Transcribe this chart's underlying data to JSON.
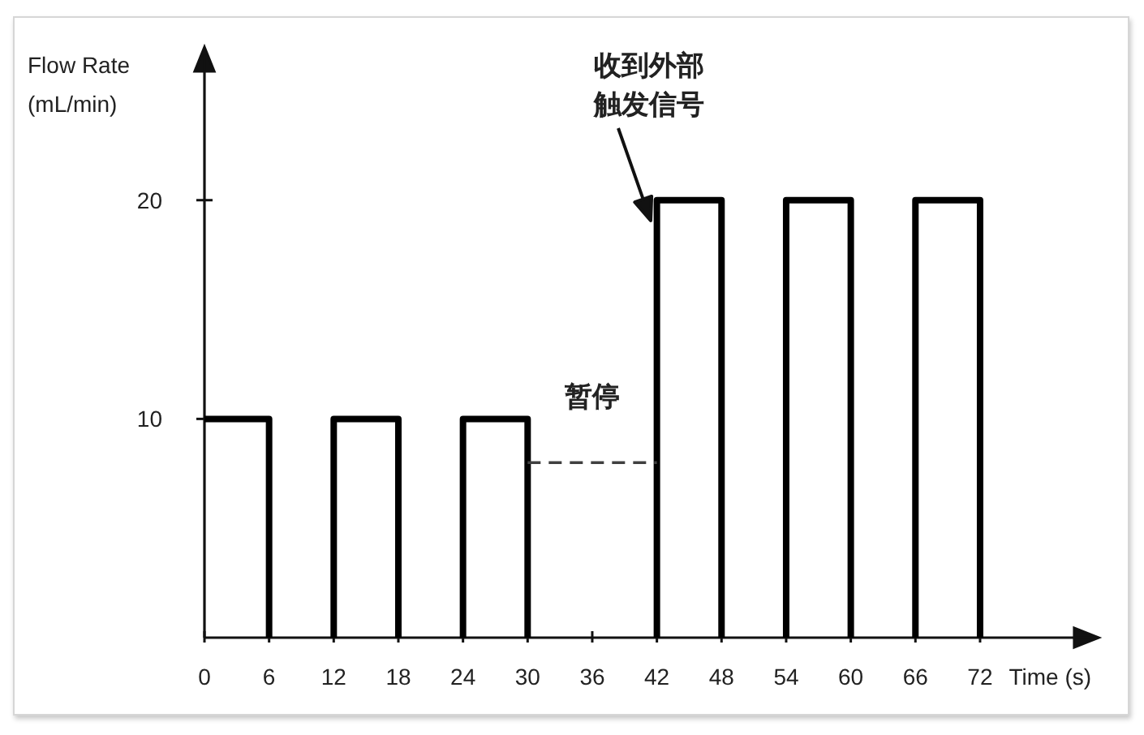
{
  "chart_data": {
    "type": "step",
    "xlabel": "Time (s)",
    "ylabel": "Flow Rate (mL/min)",
    "xlim": [
      0,
      83
    ],
    "ylim": [
      0,
      27
    ],
    "xticks": [
      0,
      6,
      12,
      18,
      24,
      30,
      36,
      42,
      48,
      54,
      60,
      66,
      72
    ],
    "yticks": [
      10,
      20
    ],
    "series": [
      {
        "color": "#000000",
        "line_style": "solid",
        "x": [
          0,
          6,
          12,
          18,
          24,
          30,
          42,
          48,
          54,
          60,
          66,
          72
        ],
        "values": [
          10,
          0,
          10,
          0,
          10,
          0,
          20,
          0,
          20,
          0,
          20,
          0
        ]
      },
      {
        "type": "line",
        "name": "暂停",
        "color": "#404040",
        "line_style": "dashed",
        "x": [
          30,
          42
        ],
        "values": [
          8,
          8
        ]
      }
    ],
    "annotations": [
      "收到外部触发信号"
    ]
  }
}
